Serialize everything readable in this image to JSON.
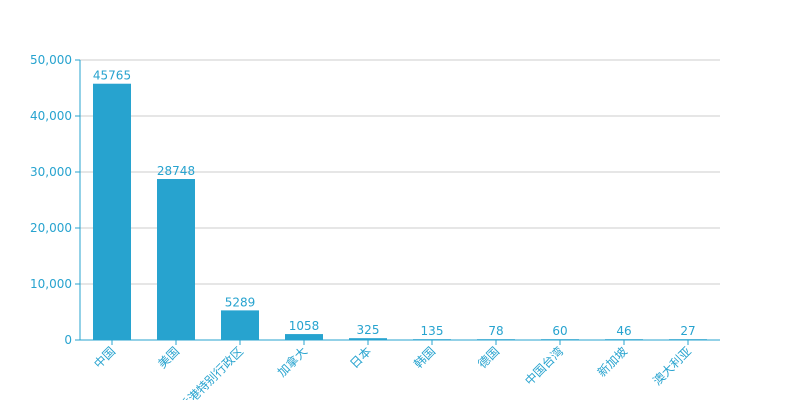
{
  "chart_data": {
    "type": "bar",
    "categories": [
      "中国",
      "美国",
      "香港特别行政区",
      "加拿大",
      "日本",
      "韩国",
      "德国",
      "中国台湾",
      "新加坡",
      "澳大利亚"
    ],
    "values": [
      45765,
      28748,
      5289,
      1058,
      325,
      135,
      78,
      60,
      46,
      27
    ],
    "value_labels": [
      "45765",
      "28748",
      "5289",
      "1058",
      "325",
      "135",
      "78",
      "60",
      "46",
      "27"
    ],
    "title": "",
    "xlabel": "",
    "ylabel": "",
    "ylim": [
      0,
      50000
    ],
    "yticks": [
      0,
      10000,
      20000,
      30000,
      40000,
      50000
    ],
    "ytick_labels": [
      "0",
      "10,000",
      "20,000",
      "30,000",
      "40,000",
      "50,000"
    ],
    "grid": true,
    "legend": "none",
    "colors": {
      "bar": "#27a3cf",
      "text": "#27a3cf",
      "grid": "#cccccc",
      "axis": "#27a3cf"
    }
  }
}
